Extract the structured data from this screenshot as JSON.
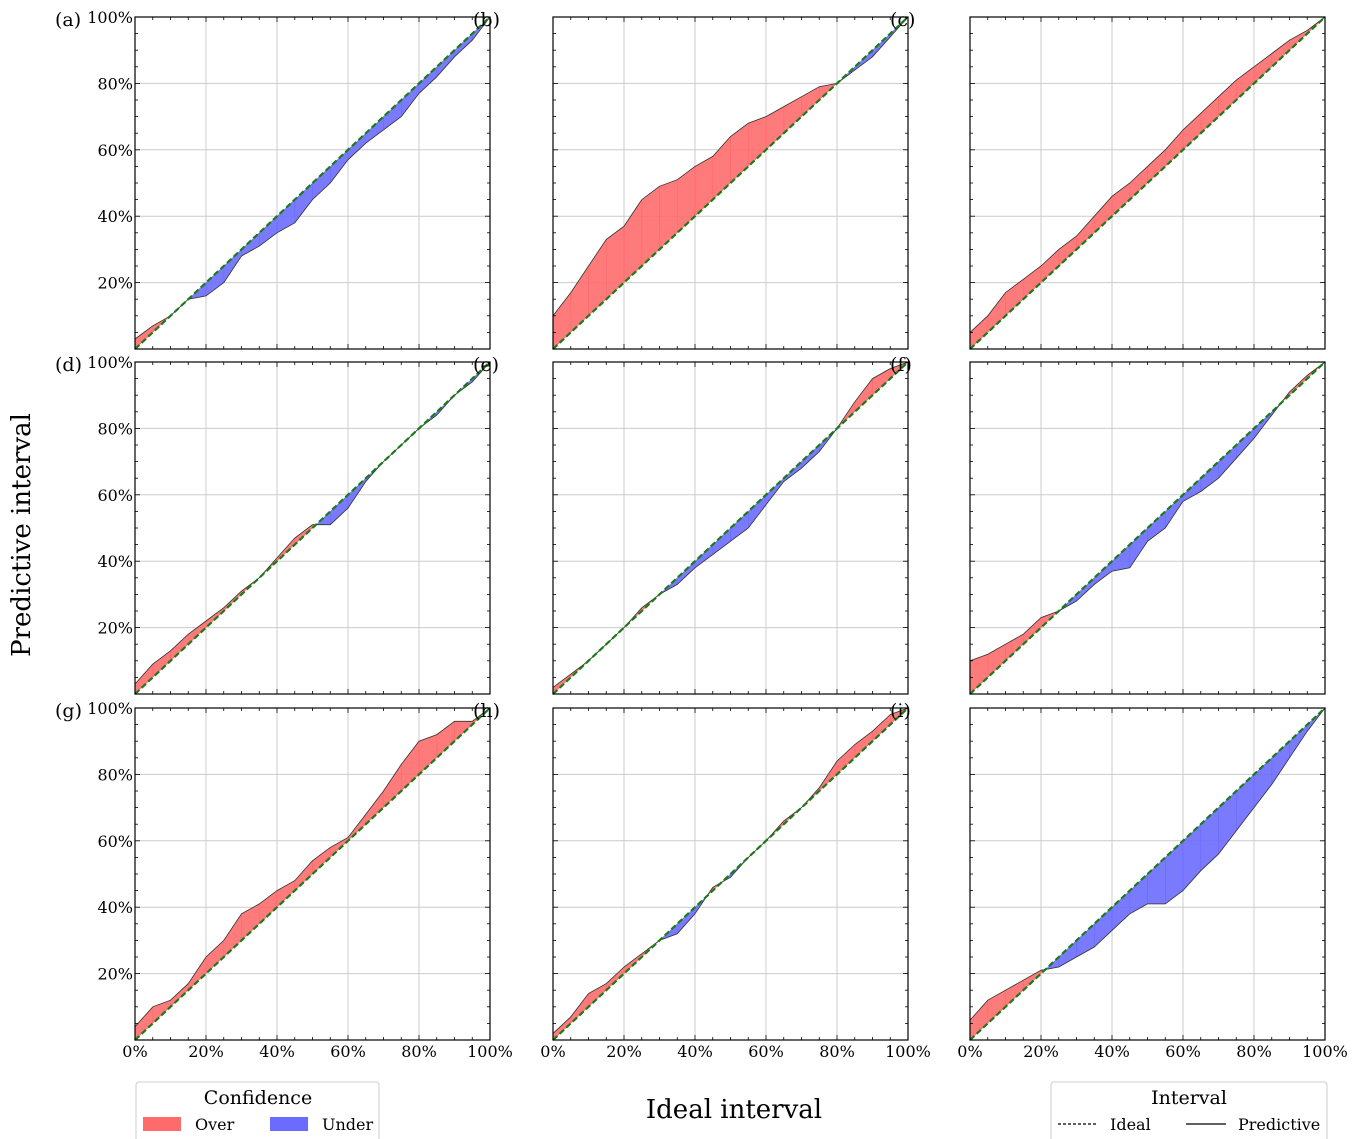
{
  "figure": {
    "ylabel": "Predictive interval",
    "xlabel": "Ideal interval",
    "legend_confidence": {
      "title": "Confidence",
      "items": [
        {
          "label": "Over",
          "color": "#ff6b6b"
        },
        {
          "label": "Under",
          "color": "#6b6bff"
        }
      ]
    },
    "legend_interval": {
      "title": "Interval",
      "items": [
        {
          "label": "Ideal",
          "style": "dashed"
        },
        {
          "label": "Predictive",
          "style": "solid"
        }
      ]
    },
    "colors": {
      "over": "#ff6b6b",
      "under": "#6b6bff",
      "ideal": "#1a7a1a",
      "grid": "#cccccc"
    }
  },
  "chart_data": [
    {
      "panel": "(a)",
      "type": "area",
      "xlim": [
        0,
        100
      ],
      "ylim": [
        0,
        100
      ],
      "yticks": [
        "20%",
        "40%",
        "60%",
        "80%",
        "100%"
      ],
      "xticks": [],
      "x": [
        0,
        5,
        10,
        15,
        20,
        25,
        30,
        35,
        40,
        45,
        50,
        55,
        60,
        65,
        70,
        75,
        80,
        85,
        90,
        95,
        100
      ],
      "ideal": [
        0,
        5,
        10,
        15,
        20,
        25,
        30,
        35,
        40,
        45,
        50,
        55,
        60,
        65,
        70,
        75,
        80,
        85,
        90,
        95,
        100
      ],
      "predictive": [
        3,
        7,
        10,
        15,
        16,
        20,
        28,
        31,
        35,
        38,
        45,
        50,
        57,
        62,
        66,
        70,
        77,
        82,
        88,
        93,
        100
      ]
    },
    {
      "panel": "(b)",
      "type": "area",
      "xlim": [
        0,
        100
      ],
      "ylim": [
        0,
        100
      ],
      "yticks": [],
      "xticks": [],
      "x": [
        0,
        5,
        10,
        15,
        20,
        25,
        30,
        35,
        40,
        45,
        50,
        55,
        60,
        65,
        70,
        75,
        80,
        85,
        90,
        95,
        100
      ],
      "ideal": [
        0,
        5,
        10,
        15,
        20,
        25,
        30,
        35,
        40,
        45,
        50,
        55,
        60,
        65,
        70,
        75,
        80,
        85,
        90,
        95,
        100
      ],
      "predictive": [
        10,
        17,
        25,
        33,
        37,
        45,
        49,
        51,
        55,
        58,
        64,
        68,
        70,
        73,
        76,
        79,
        80,
        84,
        88,
        94,
        100
      ]
    },
    {
      "panel": "(c)",
      "type": "area",
      "xlim": [
        0,
        100
      ],
      "ylim": [
        0,
        100
      ],
      "yticks": [],
      "xticks": [],
      "x": [
        0,
        5,
        10,
        15,
        20,
        25,
        30,
        35,
        40,
        45,
        50,
        55,
        60,
        65,
        70,
        75,
        80,
        85,
        90,
        95,
        100
      ],
      "ideal": [
        0,
        5,
        10,
        15,
        20,
        25,
        30,
        35,
        40,
        45,
        50,
        55,
        60,
        65,
        70,
        75,
        80,
        85,
        90,
        95,
        100
      ],
      "predictive": [
        5,
        10,
        17,
        21,
        25,
        30,
        34,
        40,
        46,
        50,
        55,
        60,
        66,
        71,
        76,
        81,
        85,
        89,
        93,
        96,
        100
      ]
    },
    {
      "panel": "(d)",
      "type": "area",
      "xlim": [
        0,
        100
      ],
      "ylim": [
        0,
        100
      ],
      "yticks": [
        "20%",
        "40%",
        "60%",
        "80%",
        "100%"
      ],
      "xticks": [],
      "x": [
        0,
        5,
        10,
        15,
        20,
        25,
        30,
        35,
        40,
        45,
        50,
        55,
        60,
        65,
        70,
        75,
        80,
        85,
        90,
        95,
        100
      ],
      "ideal": [
        0,
        5,
        10,
        15,
        20,
        25,
        30,
        35,
        40,
        45,
        50,
        55,
        60,
        65,
        70,
        75,
        80,
        85,
        90,
        95,
        100
      ],
      "predictive": [
        3,
        9,
        13,
        18,
        22,
        26,
        31,
        35,
        41,
        47,
        51,
        51,
        56,
        64,
        70,
        75,
        80,
        84,
        90,
        94,
        100
      ]
    },
    {
      "panel": "(e)",
      "type": "area",
      "xlim": [
        0,
        100
      ],
      "ylim": [
        0,
        100
      ],
      "yticks": [],
      "xticks": [],
      "x": [
        0,
        5,
        10,
        15,
        20,
        25,
        30,
        35,
        40,
        45,
        50,
        55,
        60,
        65,
        70,
        75,
        80,
        85,
        90,
        95,
        100
      ],
      "ideal": [
        0,
        5,
        10,
        15,
        20,
        25,
        30,
        35,
        40,
        45,
        50,
        55,
        60,
        65,
        70,
        75,
        80,
        85,
        90,
        95,
        100
      ],
      "predictive": [
        2,
        6,
        10,
        15,
        20,
        26,
        30,
        33,
        38,
        42,
        46,
        50,
        57,
        64,
        68,
        73,
        80,
        88,
        95,
        98,
        100
      ]
    },
    {
      "panel": "(f)",
      "type": "area",
      "xlim": [
        0,
        100
      ],
      "ylim": [
        0,
        100
      ],
      "yticks": [],
      "xticks": [],
      "x": [
        0,
        5,
        10,
        15,
        20,
        25,
        30,
        35,
        40,
        45,
        50,
        55,
        60,
        65,
        70,
        75,
        80,
        85,
        90,
        95,
        100
      ],
      "ideal": [
        0,
        5,
        10,
        15,
        20,
        25,
        30,
        35,
        40,
        45,
        50,
        55,
        60,
        65,
        70,
        75,
        80,
        85,
        90,
        95,
        100
      ],
      "predictive": [
        10,
        12,
        15,
        18,
        23,
        25,
        28,
        33,
        37,
        38,
        46,
        50,
        58,
        61,
        65,
        71,
        77,
        84,
        91,
        96,
        100
      ]
    },
    {
      "panel": "(g)",
      "type": "area",
      "xlim": [
        0,
        100
      ],
      "ylim": [
        0,
        100
      ],
      "yticks": [
        "20%",
        "40%",
        "60%",
        "80%",
        "100%"
      ],
      "xticks": [
        "0%",
        "20%",
        "40%",
        "60%",
        "80%",
        "100%"
      ],
      "x": [
        0,
        5,
        10,
        15,
        20,
        25,
        30,
        35,
        40,
        45,
        50,
        55,
        60,
        65,
        70,
        75,
        80,
        85,
        90,
        95,
        100
      ],
      "ideal": [
        0,
        5,
        10,
        15,
        20,
        25,
        30,
        35,
        40,
        45,
        50,
        55,
        60,
        65,
        70,
        75,
        80,
        85,
        90,
        95,
        100
      ],
      "predictive": [
        4,
        10,
        12,
        17,
        25,
        30,
        38,
        41,
        45,
        48,
        54,
        58,
        61,
        68,
        75,
        83,
        90,
        92,
        96,
        96,
        100
      ]
    },
    {
      "panel": "(h)",
      "type": "area",
      "xlim": [
        0,
        100
      ],
      "ylim": [
        0,
        100
      ],
      "yticks": [],
      "xticks": [
        "0%",
        "20%",
        "40%",
        "60%",
        "80%",
        "100%"
      ],
      "x": [
        0,
        5,
        10,
        15,
        20,
        25,
        30,
        35,
        40,
        45,
        50,
        55,
        60,
        65,
        70,
        75,
        80,
        85,
        90,
        95,
        100
      ],
      "ideal": [
        0,
        5,
        10,
        15,
        20,
        25,
        30,
        35,
        40,
        45,
        50,
        55,
        60,
        65,
        70,
        75,
        80,
        85,
        90,
        95,
        100
      ],
      "predictive": [
        2,
        7,
        14,
        17,
        22,
        26,
        30,
        32,
        38,
        46,
        49,
        55,
        60,
        66,
        70,
        76,
        84,
        89,
        93,
        98,
        100
      ]
    },
    {
      "panel": "(i)",
      "type": "area",
      "xlim": [
        0,
        100
      ],
      "ylim": [
        0,
        100
      ],
      "yticks": [],
      "xticks": [
        "0%",
        "20%",
        "40%",
        "60%",
        "80%",
        "100%"
      ],
      "x": [
        0,
        5,
        10,
        15,
        20,
        25,
        30,
        35,
        40,
        45,
        50,
        55,
        60,
        65,
        70,
        75,
        80,
        85,
        90,
        95,
        100
      ],
      "ideal": [
        0,
        5,
        10,
        15,
        20,
        25,
        30,
        35,
        40,
        45,
        50,
        55,
        60,
        65,
        70,
        75,
        80,
        85,
        90,
        95,
        100
      ],
      "predictive": [
        6,
        12,
        15,
        18,
        21,
        22,
        25,
        28,
        33,
        38,
        41,
        41,
        45,
        51,
        56,
        63,
        70,
        77,
        85,
        93,
        100
      ]
    }
  ]
}
